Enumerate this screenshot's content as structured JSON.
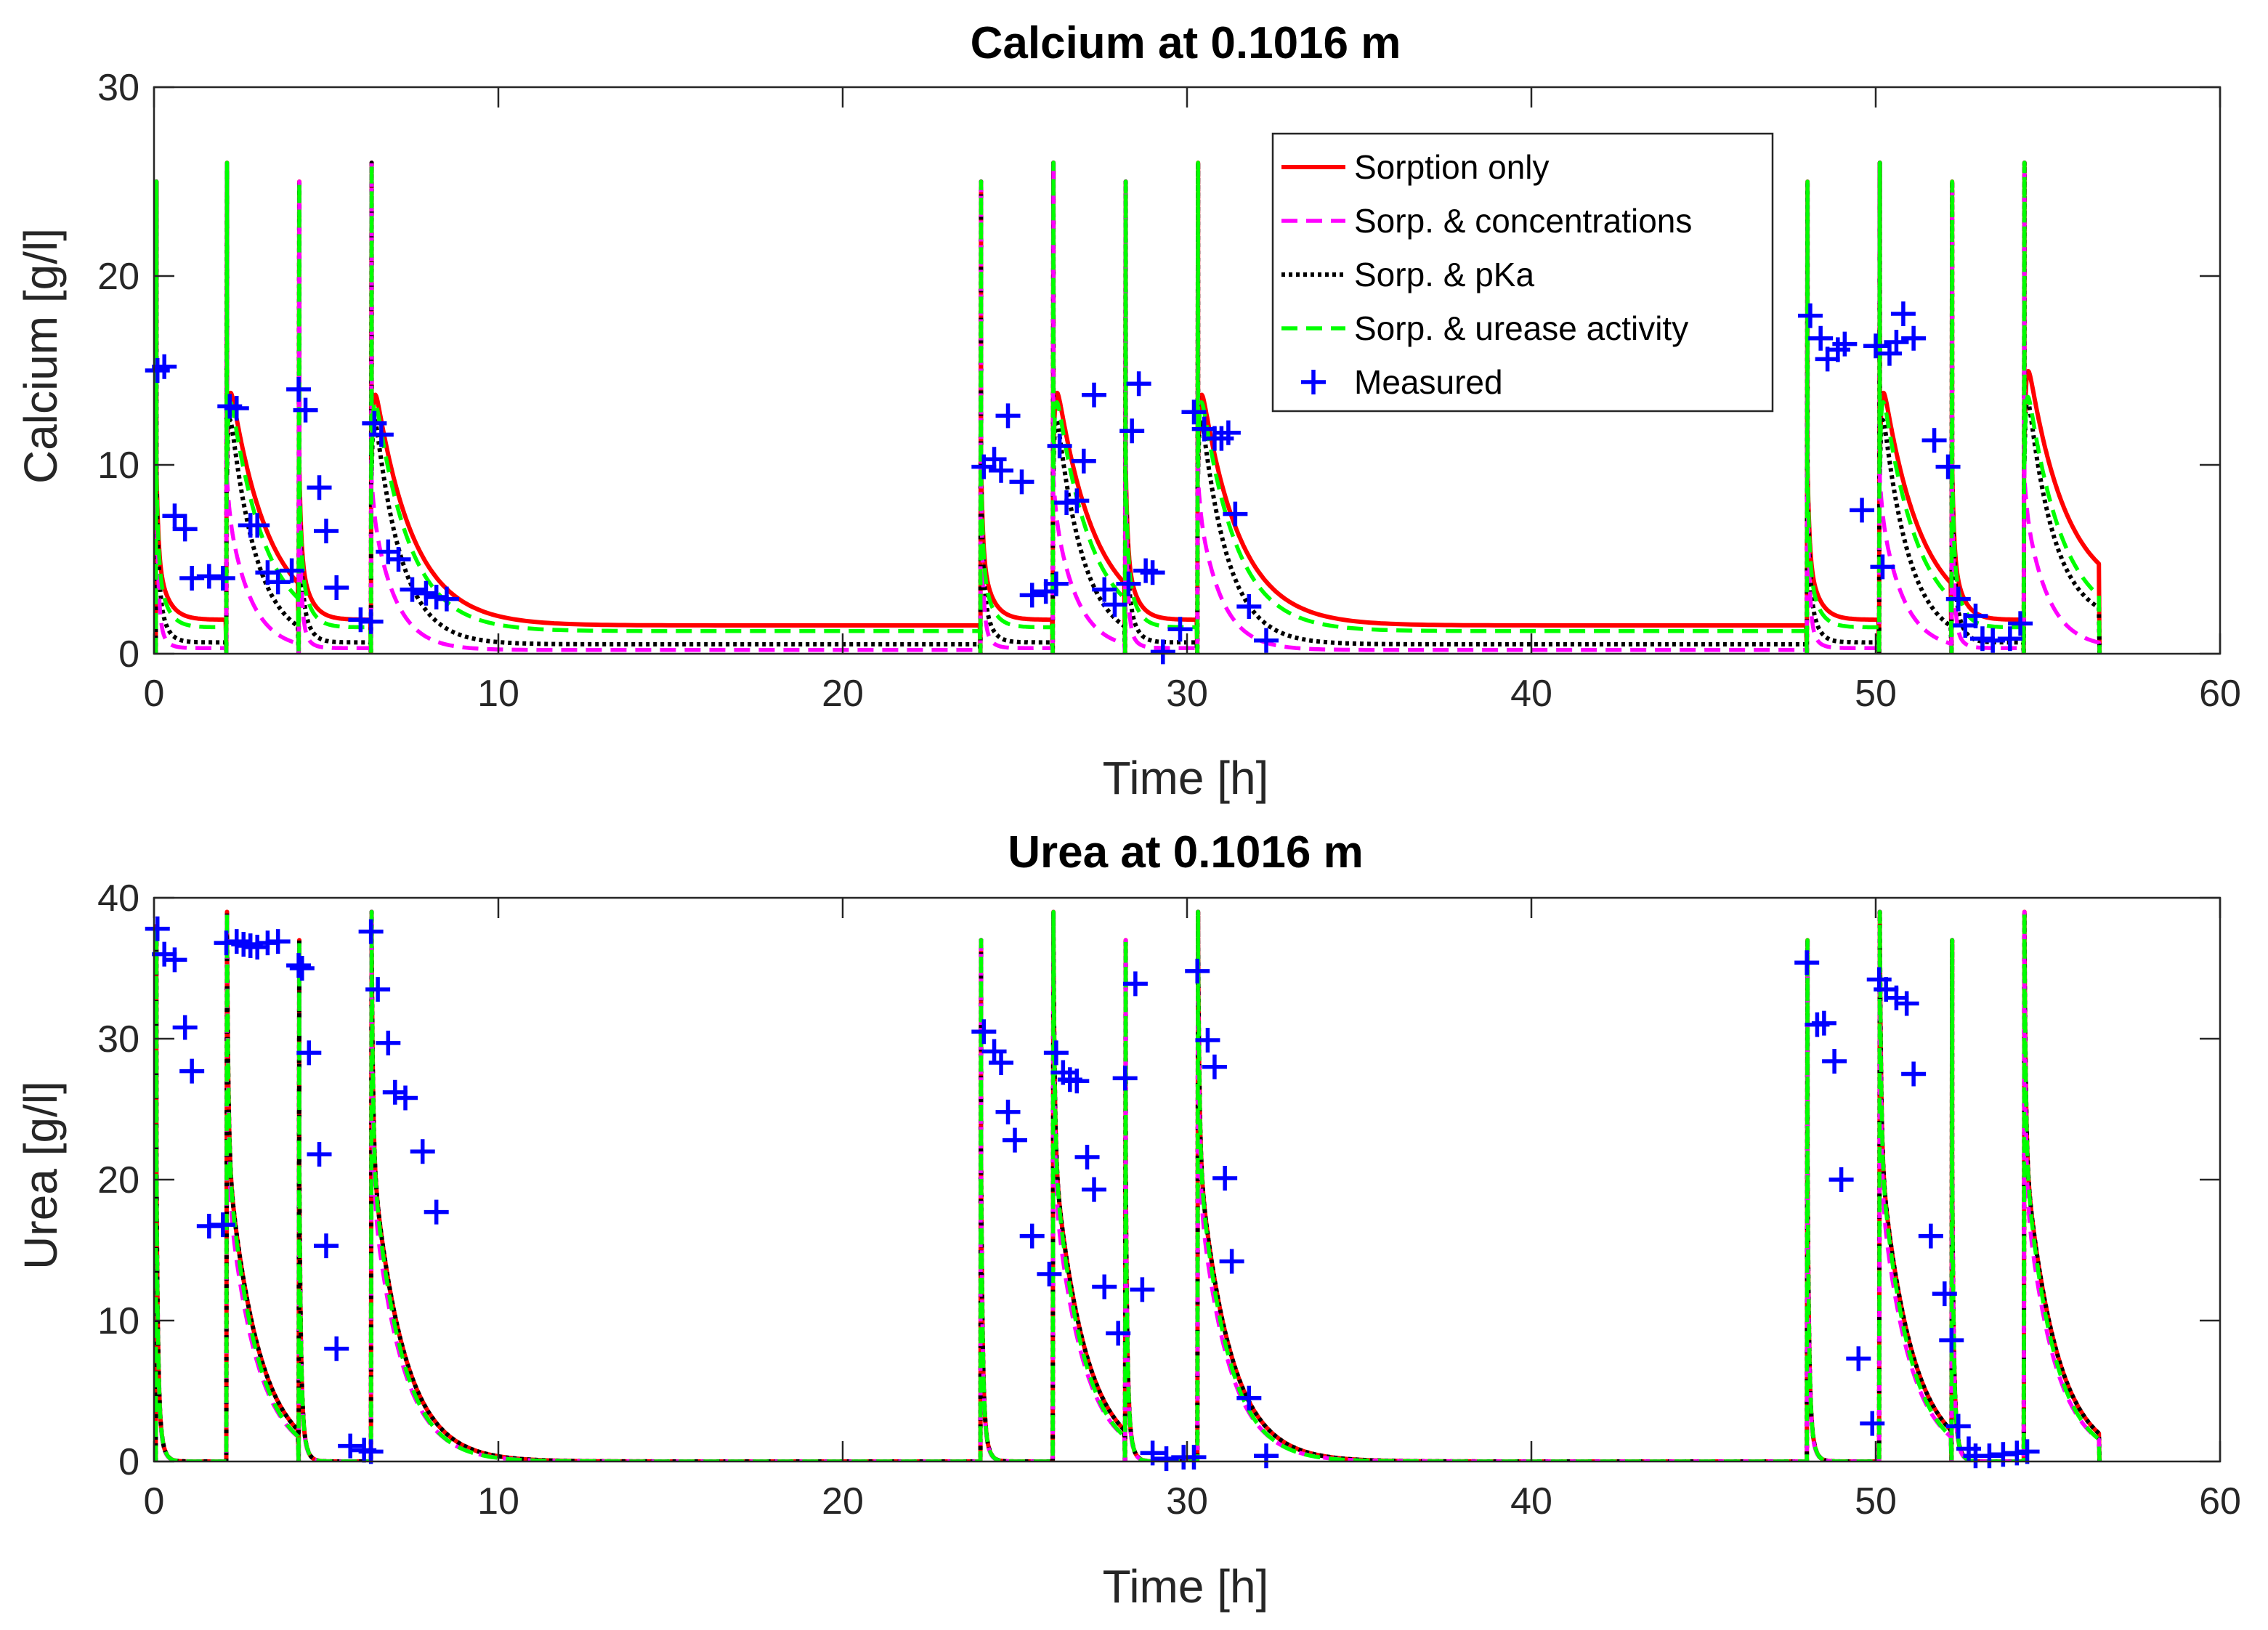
{
  "colors": {
    "sorption_only": "#ff0000",
    "sorp_concentrations": "#ff00ff",
    "sorp_pka": "#000000",
    "sorp_urease": "#00ff00",
    "measured": "#0000ff",
    "axis": "#262626"
  },
  "chart_data": [
    {
      "type": "line",
      "title": "Calcium at 0.1016 m",
      "xlabel": "Time [h]",
      "ylabel": "Calcium [g/l]",
      "xlim": [
        0,
        60
      ],
      "ylim": [
        0,
        30
      ],
      "xticks": [
        "0",
        "10",
        "20",
        "30",
        "40",
        "50",
        "60"
      ],
      "yticks": [
        "0",
        "10",
        "20",
        "30"
      ],
      "injections": [
        {
          "t": 0.05,
          "peak": 25,
          "next": 2.1
        },
        {
          "t": 2.1,
          "peak": 26,
          "next": 4.2
        },
        {
          "t": 4.2,
          "peak": 25,
          "next": 6.3
        },
        {
          "t": 6.3,
          "peak": 26,
          "next": 24.0
        },
        {
          "t": 24.0,
          "peak": 25,
          "next": 26.1
        },
        {
          "t": 26.1,
          "peak": 26,
          "next": 28.2
        },
        {
          "t": 28.2,
          "peak": 25,
          "next": 30.3
        },
        {
          "t": 30.3,
          "peak": 26,
          "next": 48.0
        },
        {
          "t": 48.0,
          "peak": 25,
          "next": 50.1
        },
        {
          "t": 50.1,
          "peak": 26,
          "next": 52.2
        },
        {
          "t": 52.2,
          "peak": 25,
          "next": 54.3
        },
        {
          "t": 54.3,
          "peak": 26,
          "next": 56.5
        }
      ],
      "series": [
        {
          "name": "Sorption only",
          "style": "solid",
          "baseline": [
            1.8,
            1.6,
            1.8,
            1.5
          ],
          "tail_level": 1.5,
          "decay": 0.5
        },
        {
          "name": "Sorp. & concentrations",
          "style": "dashed",
          "baseline": [
            0.3,
            0.2,
            0.3,
            0.2
          ],
          "tail_level": 0.2,
          "decay": 0.3
        },
        {
          "name": "Sorp. & pKa",
          "style": "dotted",
          "baseline": [
            0.6,
            0.5,
            0.6,
            0.5
          ],
          "tail_level": 0.5,
          "decay": 0.35
        },
        {
          "name": "Sorp. & urease activity",
          "style": "dashed",
          "baseline": [
            1.4,
            1.2,
            1.4,
            1.2
          ],
          "tail_level": 1.2,
          "decay": 0.45
        }
      ],
      "measured": {
        "name": "Measured",
        "points": [
          [
            0.1,
            15
          ],
          [
            0.3,
            15.2
          ],
          [
            0.6,
            7.3
          ],
          [
            0.9,
            6.6
          ],
          [
            1.1,
            4.0
          ],
          [
            1.6,
            4.1
          ],
          [
            2.0,
            4.0
          ],
          [
            2.2,
            13.1
          ],
          [
            2.4,
            13.0
          ],
          [
            2.8,
            6.8
          ],
          [
            3.0,
            6.8
          ],
          [
            3.3,
            4.3
          ],
          [
            3.6,
            3.8
          ],
          [
            4.0,
            4.4
          ],
          [
            4.2,
            14.0
          ],
          [
            4.4,
            12.9
          ],
          [
            4.8,
            8.8
          ],
          [
            5.0,
            6.5
          ],
          [
            5.3,
            3.5
          ],
          [
            6.0,
            1.8
          ],
          [
            6.3,
            1.7
          ],
          [
            6.4,
            12.2
          ],
          [
            6.6,
            11.6
          ],
          [
            6.8,
            5.4
          ],
          [
            7.1,
            5.0
          ],
          [
            7.5,
            3.4
          ],
          [
            7.9,
            3.2
          ],
          [
            8.2,
            3.0
          ],
          [
            8.5,
            2.9
          ],
          [
            24.1,
            9.9
          ],
          [
            24.4,
            10.3
          ],
          [
            24.6,
            9.7
          ],
          [
            24.8,
            12.6
          ],
          [
            25.2,
            9.1
          ],
          [
            25.5,
            3.1
          ],
          [
            25.9,
            3.3
          ],
          [
            26.2,
            3.7
          ],
          [
            26.3,
            11.0
          ],
          [
            26.5,
            8.0
          ],
          [
            26.8,
            8.1
          ],
          [
            27.0,
            10.2
          ],
          [
            27.3,
            13.7
          ],
          [
            27.6,
            3.4
          ],
          [
            27.9,
            2.6
          ],
          [
            28.3,
            3.7
          ],
          [
            28.4,
            11.8
          ],
          [
            28.6,
            14.3
          ],
          [
            28.8,
            4.4
          ],
          [
            29.0,
            4.3
          ],
          [
            29.3,
            0.1
          ],
          [
            29.8,
            1.3
          ],
          [
            30.2,
            12.8
          ],
          [
            30.5,
            11.9
          ],
          [
            30.8,
            11.4
          ],
          [
            31.0,
            11.4
          ],
          [
            31.2,
            11.7
          ],
          [
            31.4,
            7.4
          ],
          [
            31.8,
            2.5
          ],
          [
            32.3,
            0.7
          ],
          [
            48.1,
            17.9
          ],
          [
            48.4,
            16.7
          ],
          [
            48.6,
            15.6
          ],
          [
            48.9,
            16.1
          ],
          [
            49.1,
            16.4
          ],
          [
            49.6,
            7.6
          ],
          [
            50.0,
            16.3
          ],
          [
            50.2,
            4.6
          ],
          [
            50.4,
            15.9
          ],
          [
            50.6,
            16.5
          ],
          [
            50.8,
            18.0
          ],
          [
            51.1,
            16.7
          ],
          [
            51.7,
            11.3
          ],
          [
            52.1,
            9.9
          ],
          [
            52.4,
            2.9
          ],
          [
            52.6,
            1.5
          ],
          [
            52.9,
            2.0
          ],
          [
            53.1,
            0.8
          ],
          [
            53.4,
            0.7
          ],
          [
            53.9,
            0.8
          ],
          [
            54.2,
            1.6
          ]
        ]
      },
      "legend": {
        "location": "top-right"
      }
    },
    {
      "type": "line",
      "title": "Urea at 0.1016 m",
      "xlabel": "Time [h]",
      "ylabel": "Urea [g/l]",
      "xlim": [
        0,
        60
      ],
      "ylim": [
        0,
        40
      ],
      "xticks": [
        "0",
        "10",
        "20",
        "30",
        "40",
        "50",
        "60"
      ],
      "yticks": [
        "0",
        "10",
        "20",
        "30",
        "40"
      ],
      "injections": [
        {
          "t": 0.05,
          "peak": 38,
          "next": 2.1
        },
        {
          "t": 2.1,
          "peak": 39,
          "next": 4.2
        },
        {
          "t": 4.2,
          "peak": 37,
          "next": 6.3
        },
        {
          "t": 6.3,
          "peak": 39,
          "next": 24.0
        },
        {
          "t": 24.0,
          "peak": 37,
          "next": 26.1
        },
        {
          "t": 26.1,
          "peak": 39,
          "next": 28.2
        },
        {
          "t": 28.2,
          "peak": 37,
          "next": 30.3
        },
        {
          "t": 30.3,
          "peak": 39,
          "next": 48.0
        },
        {
          "t": 48.0,
          "peak": 37,
          "next": 50.1
        },
        {
          "t": 50.1,
          "peak": 39,
          "next": 52.2
        },
        {
          "t": 52.2,
          "peak": 37,
          "next": 54.3
        },
        {
          "t": 54.3,
          "peak": 39,
          "next": 56.5
        }
      ],
      "series": [
        {
          "name": "Sorption only",
          "style": "solid"
        },
        {
          "name": "Sorp. & concentrations",
          "style": "dashed"
        },
        {
          "name": "Sorp. & pKa",
          "style": "dotted"
        },
        {
          "name": "Sorp. & urease activity",
          "style": "dashed"
        }
      ],
      "measured": {
        "name": "Measured",
        "points": [
          [
            0.1,
            37.8
          ],
          [
            0.3,
            36.0
          ],
          [
            0.6,
            35.6
          ],
          [
            0.9,
            30.8
          ],
          [
            1.1,
            27.7
          ],
          [
            1.6,
            16.7
          ],
          [
            2.0,
            16.8
          ],
          [
            2.1,
            36.8
          ],
          [
            2.4,
            36.9
          ],
          [
            2.6,
            36.7
          ],
          [
            2.8,
            36.6
          ],
          [
            3.0,
            36.5
          ],
          [
            3.3,
            36.8
          ],
          [
            3.6,
            36.9
          ],
          [
            4.2,
            35.2
          ],
          [
            4.3,
            35.0
          ],
          [
            4.5,
            29.0
          ],
          [
            4.8,
            21.8
          ],
          [
            5.0,
            15.3
          ],
          [
            5.3,
            8.0
          ],
          [
            5.7,
            1.1
          ],
          [
            6.1,
            0.8
          ],
          [
            6.3,
            0.7
          ],
          [
            6.3,
            37.6
          ],
          [
            6.5,
            33.5
          ],
          [
            6.8,
            29.7
          ],
          [
            7.0,
            26.2
          ],
          [
            7.3,
            25.8
          ],
          [
            7.8,
            22.0
          ],
          [
            8.2,
            17.7
          ],
          [
            24.1,
            30.5
          ],
          [
            24.4,
            29.1
          ],
          [
            24.6,
            28.3
          ],
          [
            24.8,
            24.8
          ],
          [
            25.0,
            22.8
          ],
          [
            25.5,
            16.0
          ],
          [
            26.0,
            13.3
          ],
          [
            26.2,
            29.0
          ],
          [
            26.4,
            27.6
          ],
          [
            26.6,
            27.1
          ],
          [
            26.8,
            27.0
          ],
          [
            27.1,
            21.6
          ],
          [
            27.3,
            19.3
          ],
          [
            27.6,
            12.4
          ],
          [
            28.0,
            9.1
          ],
          [
            28.2,
            27.2
          ],
          [
            28.5,
            33.9
          ],
          [
            28.7,
            12.2
          ],
          [
            29.0,
            0.6
          ],
          [
            29.4,
            0.2
          ],
          [
            29.9,
            0.3
          ],
          [
            30.2,
            0.3
          ],
          [
            30.3,
            34.8
          ],
          [
            30.6,
            29.9
          ],
          [
            30.8,
            28.0
          ],
          [
            31.1,
            20.1
          ],
          [
            31.3,
            14.2
          ],
          [
            31.8,
            4.5
          ],
          [
            32.3,
            0.4
          ],
          [
            48.0,
            35.4
          ],
          [
            48.3,
            31.0
          ],
          [
            48.5,
            31.1
          ],
          [
            48.8,
            28.4
          ],
          [
            49.0,
            20.0
          ],
          [
            49.5,
            7.3
          ],
          [
            49.9,
            2.7
          ],
          [
            50.1,
            34.2
          ],
          [
            50.3,
            33.5
          ],
          [
            50.6,
            32.9
          ],
          [
            50.9,
            32.5
          ],
          [
            51.1,
            27.5
          ],
          [
            51.6,
            16.0
          ],
          [
            52.0,
            11.9
          ],
          [
            52.2,
            8.6
          ],
          [
            52.4,
            2.5
          ],
          [
            52.7,
            0.9
          ],
          [
            52.9,
            0.4
          ],
          [
            53.3,
            0.4
          ],
          [
            53.7,
            0.5
          ],
          [
            54.1,
            0.6
          ],
          [
            54.4,
            0.7
          ]
        ]
      }
    }
  ]
}
